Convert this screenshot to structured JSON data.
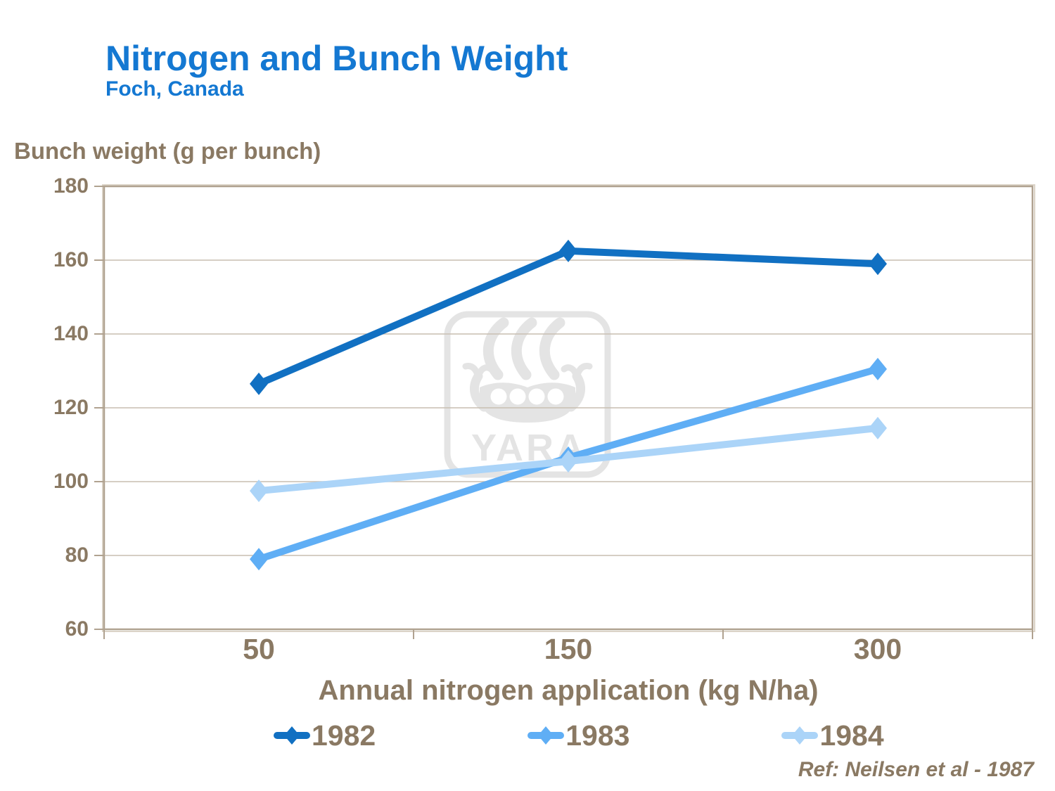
{
  "header": {
    "title": "Nitrogen and Bunch Weight",
    "subtitle": "Foch, Canada"
  },
  "axes": {
    "y_unit_label": "Bunch weight (g per bunch)"
  },
  "watermark": {
    "text": "YARA"
  },
  "footer": {
    "reference": "Ref: Neilsen et al - 1987"
  },
  "colors": {
    "title_blue": "#1478D2",
    "text_brown": "#8A7963",
    "axis_line": "#B0A290",
    "gridline": "#C8BEB1",
    "border_highlight": "#DCD4C8",
    "watermark_gray": "#E4E4E4",
    "series_1982": "#1170C2",
    "series_1983": "#5FAEF5",
    "series_1984": "#ABD4F8"
  },
  "chart_data": {
    "type": "line",
    "title": "Nitrogen and Bunch Weight",
    "subtitle": "Foch, Canada",
    "categories": [
      "50",
      "150",
      "300"
    ],
    "xlabel": "Annual nitrogen application (kg N/ha)",
    "ylabel": "Bunch weight (g per bunch)",
    "ylim": [
      60,
      180
    ],
    "y_ticks": [
      180,
      160,
      140,
      120,
      100,
      80,
      60
    ],
    "grid": "horizontal",
    "legend_position": "bottom",
    "marker": "diamond",
    "series": [
      {
        "name": "1982",
        "color": "#1170C2",
        "values": [
          126.5,
          162.5,
          159
        ]
      },
      {
        "name": "1983",
        "color": "#5FAEF5",
        "values": [
          79,
          106.5,
          130.5
        ]
      },
      {
        "name": "1984",
        "color": "#ABD4F8",
        "values": [
          97.5,
          105.5,
          114.5
        ]
      }
    ]
  }
}
